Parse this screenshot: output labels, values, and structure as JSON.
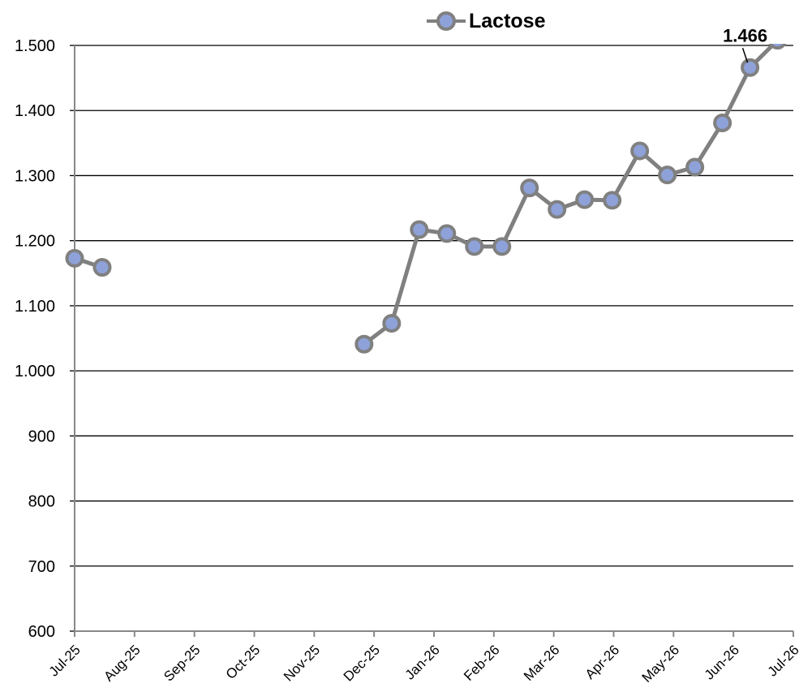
{
  "chart_data": {
    "type": "line",
    "title": "",
    "xlabel": "",
    "ylabel": "",
    "ylim": [
      600,
      1500
    ],
    "yticks": [
      "600",
      "700",
      "800",
      "900",
      "1.000",
      "1.100",
      "1.200",
      "1.300",
      "1.400",
      "1.500"
    ],
    "xticks": [
      "Jul-25",
      "Aug-25",
      "Sep-25",
      "Oct-25",
      "Nov-25",
      "Dec-25",
      "Jan-26",
      "Feb-26",
      "Mar-26",
      "Apr-26",
      "May-26",
      "Jun-26",
      "Jul-26"
    ],
    "xlim": [
      "2025-07-01",
      "2026-07-01"
    ],
    "grid": "horizontal",
    "legend_position": "top",
    "series": [
      {
        "name": "Lactose",
        "line_color": "#808080",
        "marker_fill": "#8EA2D9",
        "segments": [
          [
            {
              "x": "2025-07-01",
              "y": 1173
            },
            {
              "x": "2025-07-15",
              "y": 1159
            }
          ],
          [
            {
              "x": "2025-11-25",
              "y": 1041
            },
            {
              "x": "2025-12-09",
              "y": 1073
            },
            {
              "x": "2025-12-23",
              "y": 1217
            },
            {
              "x": "2026-01-06",
              "y": 1211
            },
            {
              "x": "2026-01-20",
              "y": 1191
            },
            {
              "x": "2026-02-03",
              "y": 1191
            },
            {
              "x": "2026-02-17",
              "y": 1281
            },
            {
              "x": "2026-03-03",
              "y": 1248
            },
            {
              "x": "2026-03-17",
              "y": 1263
            },
            {
              "x": "2026-03-31",
              "y": 1262
            },
            {
              "x": "2026-04-14",
              "y": 1338
            },
            {
              "x": "2026-04-28",
              "y": 1301
            },
            {
              "x": "2026-05-12",
              "y": 1313
            },
            {
              "x": "2026-05-26",
              "y": 1381
            },
            {
              "x": "2026-06-09",
              "y": 1466
            },
            {
              "x": "2026-06-23",
              "y": 1508
            }
          ]
        ]
      }
    ],
    "annotations": [
      {
        "text": "1.466",
        "x": "2026-06-09",
        "y": 1466
      }
    ]
  }
}
